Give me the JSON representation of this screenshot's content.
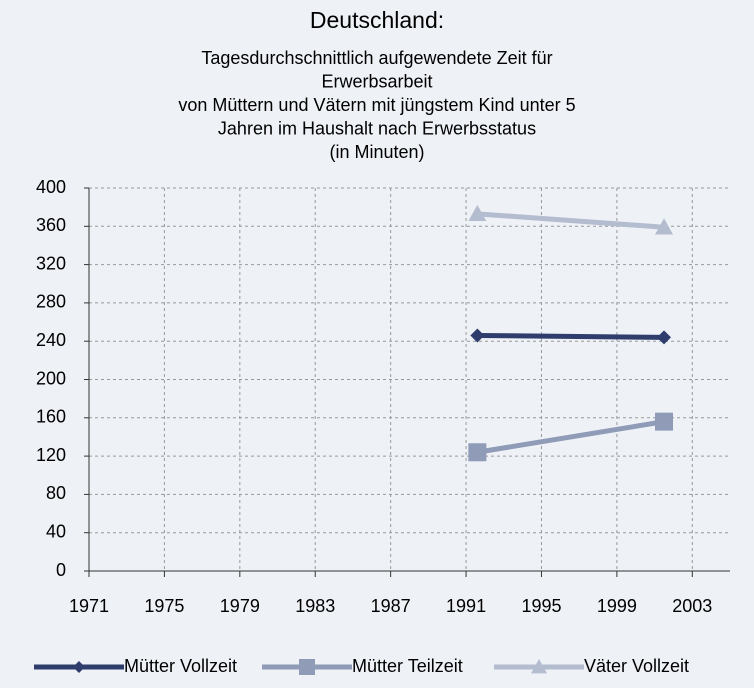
{
  "chart_data": {
    "type": "line",
    "title": "Deutschland:",
    "subtitle": [
      "Tagesdurchschnittlich aufgewendete Zeit für",
      "Erwerbsarbeit",
      "von Müttern und Vätern mit jüngstem Kind unter 5",
      "Jahren im Haushalt nach Erwerbsstatus",
      "(in Minuten)"
    ],
    "x": [
      1991.6,
      2001.5
    ],
    "series": [
      {
        "name": "Mütter Vollzeit",
        "color": "#2e3d6b",
        "marker": "diamond",
        "values": [
          246,
          244
        ]
      },
      {
        "name": "Mütter Teilzeit",
        "color": "#8f9bb7",
        "marker": "square",
        "values": [
          124,
          156
        ]
      },
      {
        "name": "Väter Vollzeit",
        "color": "#b4bccf",
        "marker": "triangle",
        "values": [
          373,
          359
        ]
      }
    ],
    "xlim": [
      1971,
      2005
    ],
    "xticks": [
      1971,
      1975,
      1979,
      1983,
      1987,
      1991,
      1995,
      1999,
      2003
    ],
    "ylim": [
      0,
      400
    ],
    "yticks": [
      0,
      40,
      80,
      120,
      160,
      200,
      240,
      280,
      320,
      360,
      400
    ],
    "grid": true,
    "legend": "bottom"
  }
}
